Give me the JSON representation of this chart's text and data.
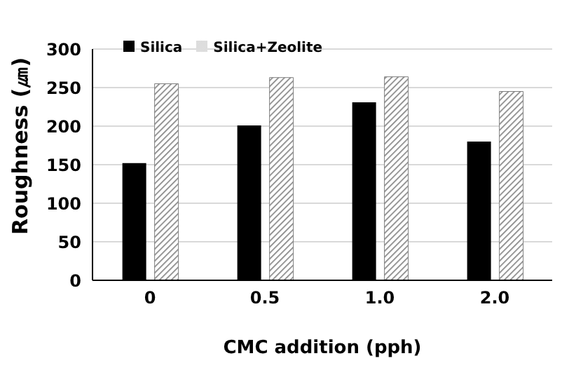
{
  "chart_data": {
    "type": "bar",
    "xlabel": "CMC addition (pph)",
    "ylabel": "Roughness (㎛)",
    "categories": [
      "0",
      "0.5",
      "1.0",
      "2.0"
    ],
    "series": [
      {
        "name": "Silica",
        "color": "#000000",
        "values": [
          152,
          201,
          231,
          180
        ]
      },
      {
        "name": "Silica+Zeolite",
        "color": "#7f7f7f",
        "values": [
          255,
          263,
          264,
          245
        ]
      }
    ],
    "ylim": [
      0,
      300
    ],
    "yticks": [
      0,
      50,
      100,
      150,
      200,
      250,
      300
    ],
    "grid": "y",
    "legend": "top left"
  }
}
